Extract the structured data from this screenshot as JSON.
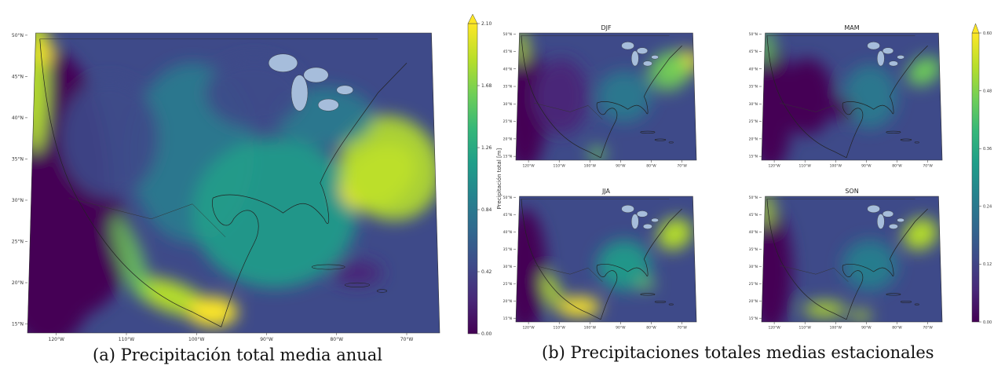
{
  "captions": {
    "a": "(a) Precipitación total media anual",
    "b": "(b) Precipitaciones totales medias estacionales"
  },
  "palette": [
    "#440154",
    "#482878",
    "#3e4a89",
    "#31688e",
    "#26828e",
    "#1f9e89",
    "#35b779",
    "#6ece58",
    "#b5de2b",
    "#fde725"
  ],
  "land_colors": {
    "lakes": "#a6bddb",
    "coast": "#222222"
  },
  "chart_data": [
    {
      "type": "heatmap",
      "id": "annual",
      "title": "",
      "colorbar_label": "Precipitación total [m]",
      "colorbar_ticks": [
        "0.00",
        "0.42",
        "0.84",
        "1.26",
        "1.68",
        "2.10"
      ],
      "colorbar_range": [
        0.0,
        2.1
      ],
      "x_ticks": [
        "120°W",
        "110°W",
        "100°W",
        "90°W",
        "80°W",
        "70°W"
      ],
      "y_ticks": [
        "15°N",
        "20°N",
        "25°N",
        "30°N",
        "35°N",
        "40°N",
        "45°N",
        "50°N"
      ],
      "lon_range": [
        -125,
        -65
      ],
      "lat_range": [
        14,
        50
      ]
    },
    {
      "type": "heatmap",
      "id": "seasonal",
      "colorbar_label": "Precipitación total [m]",
      "colorbar_ticks": [
        "0.00",
        "0.12",
        "0.24",
        "0.36",
        "0.48",
        "0.60"
      ],
      "colorbar_range": [
        0.0,
        0.6
      ],
      "x_ticks": [
        "120°W",
        "110°W",
        "100°W",
        "90°W",
        "80°W",
        "70°W"
      ],
      "y_ticks": [
        "15°N",
        "20°N",
        "25°N",
        "30°N",
        "35°N",
        "40°N",
        "45°N",
        "50°N"
      ],
      "panels": [
        {
          "title": "DJF",
          "season": "winter"
        },
        {
          "title": "MAM",
          "season": "spring"
        },
        {
          "title": "JJA",
          "season": "summer"
        },
        {
          "title": "SON",
          "season": "autumn"
        }
      ]
    }
  ]
}
